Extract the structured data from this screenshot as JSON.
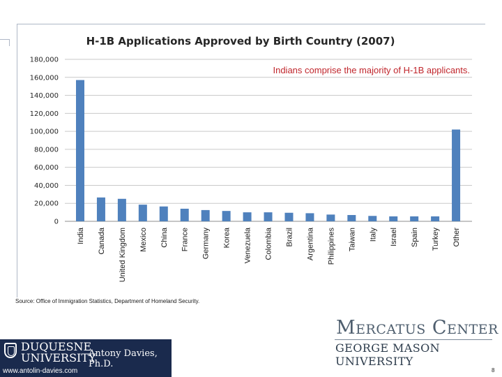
{
  "slide": {
    "annotation": "Indians comprise the majority of H-1B applicants.",
    "source": "Source:  Office of Immigration Statistics, Department of Homeland Security.",
    "logo_mercatus": "Mercatus Center",
    "logo_gmu": "GEORGE MASON UNIVERSITY",
    "duquesne_line1": "DUQUESNE",
    "duquesne_line2": "UNIVERSITY",
    "author": "Antony Davies, Ph.D.",
    "website": "www.antolin-davies.com",
    "page_number": "8"
  },
  "chart_data": {
    "type": "bar",
    "title": "H-1B Applications Approved by Birth Country   (2007)",
    "xlabel": "",
    "ylabel": "",
    "ylim": [
      0,
      180000
    ],
    "yticks": [
      0,
      20000,
      40000,
      60000,
      80000,
      100000,
      120000,
      140000,
      160000,
      180000
    ],
    "ytick_labels": [
      "0",
      "20,000",
      "40,000",
      "60,000",
      "80,000",
      "100,000",
      "120,000",
      "140,000",
      "160,000",
      "180,000"
    ],
    "grid": true,
    "legend": "none",
    "bar_color": "#4f81bd",
    "categories": [
      "India",
      "Canada",
      "United Kingdom",
      "Mexico",
      "China",
      "France",
      "Germany",
      "Korea",
      "Venezuela",
      "Colombia",
      "Brazil",
      "Argentina",
      "Philippines",
      "Taiwan",
      "Italy",
      "Israel",
      "Spain",
      "Turkey",
      "Other"
    ],
    "values": [
      157000,
      26500,
      25000,
      18500,
      16500,
      14000,
      12500,
      11500,
      10000,
      10000,
      9500,
      9000,
      7500,
      7000,
      6000,
      5500,
      5500,
      5500,
      102000
    ]
  }
}
